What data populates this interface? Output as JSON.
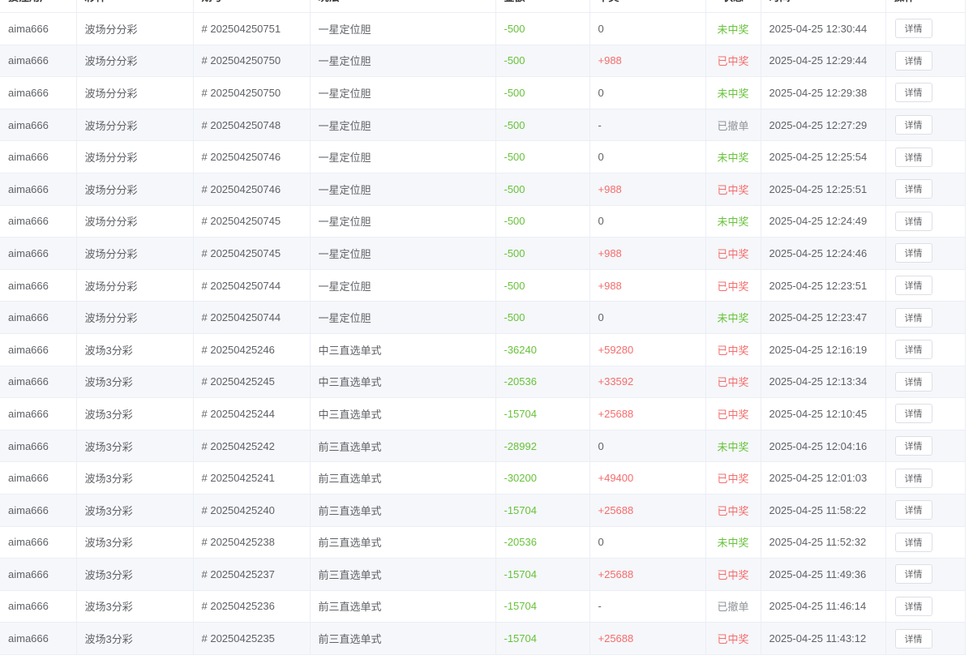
{
  "headers": [
    "投注用户",
    "彩种",
    "期号",
    "玩法",
    "金额",
    "中奖",
    "状态",
    "时间",
    "操作"
  ],
  "detail_label": "详情",
  "rows": [
    {
      "user": "aima666",
      "lottery": "波场分分彩",
      "issue": "# 202504250751",
      "play": "一星定位胆",
      "amount": "-500",
      "win": "0",
      "status": "未中奖",
      "time": "2025-04-25 12:30:44"
    },
    {
      "user": "aima666",
      "lottery": "波场分分彩",
      "issue": "# 202504250750",
      "play": "一星定位胆",
      "amount": "-500",
      "win": "+988",
      "status": "已中奖",
      "time": "2025-04-25 12:29:44"
    },
    {
      "user": "aima666",
      "lottery": "波场分分彩",
      "issue": "# 202504250750",
      "play": "一星定位胆",
      "amount": "-500",
      "win": "0",
      "status": "未中奖",
      "time": "2025-04-25 12:29:38"
    },
    {
      "user": "aima666",
      "lottery": "波场分分彩",
      "issue": "# 202504250748",
      "play": "一星定位胆",
      "amount": "-500",
      "win": "-",
      "status": "已撤单",
      "time": "2025-04-25 12:27:29"
    },
    {
      "user": "aima666",
      "lottery": "波场分分彩",
      "issue": "# 202504250746",
      "play": "一星定位胆",
      "amount": "-500",
      "win": "0",
      "status": "未中奖",
      "time": "2025-04-25 12:25:54"
    },
    {
      "user": "aima666",
      "lottery": "波场分分彩",
      "issue": "# 202504250746",
      "play": "一星定位胆",
      "amount": "-500",
      "win": "+988",
      "status": "已中奖",
      "time": "2025-04-25 12:25:51"
    },
    {
      "user": "aima666",
      "lottery": "波场分分彩",
      "issue": "# 202504250745",
      "play": "一星定位胆",
      "amount": "-500",
      "win": "0",
      "status": "未中奖",
      "time": "2025-04-25 12:24:49"
    },
    {
      "user": "aima666",
      "lottery": "波场分分彩",
      "issue": "# 202504250745",
      "play": "一星定位胆",
      "amount": "-500",
      "win": "+988",
      "status": "已中奖",
      "time": "2025-04-25 12:24:46"
    },
    {
      "user": "aima666",
      "lottery": "波场分分彩",
      "issue": "# 202504250744",
      "play": "一星定位胆",
      "amount": "-500",
      "win": "+988",
      "status": "已中奖",
      "time": "2025-04-25 12:23:51"
    },
    {
      "user": "aima666",
      "lottery": "波场分分彩",
      "issue": "# 202504250744",
      "play": "一星定位胆",
      "amount": "-500",
      "win": "0",
      "status": "未中奖",
      "time": "2025-04-25 12:23:47"
    },
    {
      "user": "aima666",
      "lottery": "波场3分彩",
      "issue": "# 20250425246",
      "play": "中三直选单式",
      "amount": "-36240",
      "win": "+59280",
      "status": "已中奖",
      "time": "2025-04-25 12:16:19"
    },
    {
      "user": "aima666",
      "lottery": "波场3分彩",
      "issue": "# 20250425245",
      "play": "中三直选单式",
      "amount": "-20536",
      "win": "+33592",
      "status": "已中奖",
      "time": "2025-04-25 12:13:34"
    },
    {
      "user": "aima666",
      "lottery": "波场3分彩",
      "issue": "# 20250425244",
      "play": "中三直选单式",
      "amount": "-15704",
      "win": "+25688",
      "status": "已中奖",
      "time": "2025-04-25 12:10:45"
    },
    {
      "user": "aima666",
      "lottery": "波场3分彩",
      "issue": "# 20250425242",
      "play": "前三直选单式",
      "amount": "-28992",
      "win": "0",
      "status": "未中奖",
      "time": "2025-04-25 12:04:16"
    },
    {
      "user": "aima666",
      "lottery": "波场3分彩",
      "issue": "# 20250425241",
      "play": "前三直选单式",
      "amount": "-30200",
      "win": "+49400",
      "status": "已中奖",
      "time": "2025-04-25 12:01:03"
    },
    {
      "user": "aima666",
      "lottery": "波场3分彩",
      "issue": "# 20250425240",
      "play": "前三直选单式",
      "amount": "-15704",
      "win": "+25688",
      "status": "已中奖",
      "time": "2025-04-25 11:58:22"
    },
    {
      "user": "aima666",
      "lottery": "波场3分彩",
      "issue": "# 20250425238",
      "play": "前三直选单式",
      "amount": "-20536",
      "win": "0",
      "status": "未中奖",
      "time": "2025-04-25 11:52:32"
    },
    {
      "user": "aima666",
      "lottery": "波场3分彩",
      "issue": "# 20250425237",
      "play": "前三直选单式",
      "amount": "-15704",
      "win": "+25688",
      "status": "已中奖",
      "time": "2025-04-25 11:49:36"
    },
    {
      "user": "aima666",
      "lottery": "波场3分彩",
      "issue": "# 20250425236",
      "play": "前三直选单式",
      "amount": "-15704",
      "win": "-",
      "status": "已撤单",
      "time": "2025-04-25 11:46:14"
    },
    {
      "user": "aima666",
      "lottery": "波场3分彩",
      "issue": "# 20250425235",
      "play": "前三直选单式",
      "amount": "-15704",
      "win": "+25688",
      "status": "已中奖",
      "time": "2025-04-25 11:43:12"
    }
  ],
  "colors": {
    "lose": "#67c23a",
    "win": "#f56c6c",
    "cancel": "#909399"
  }
}
